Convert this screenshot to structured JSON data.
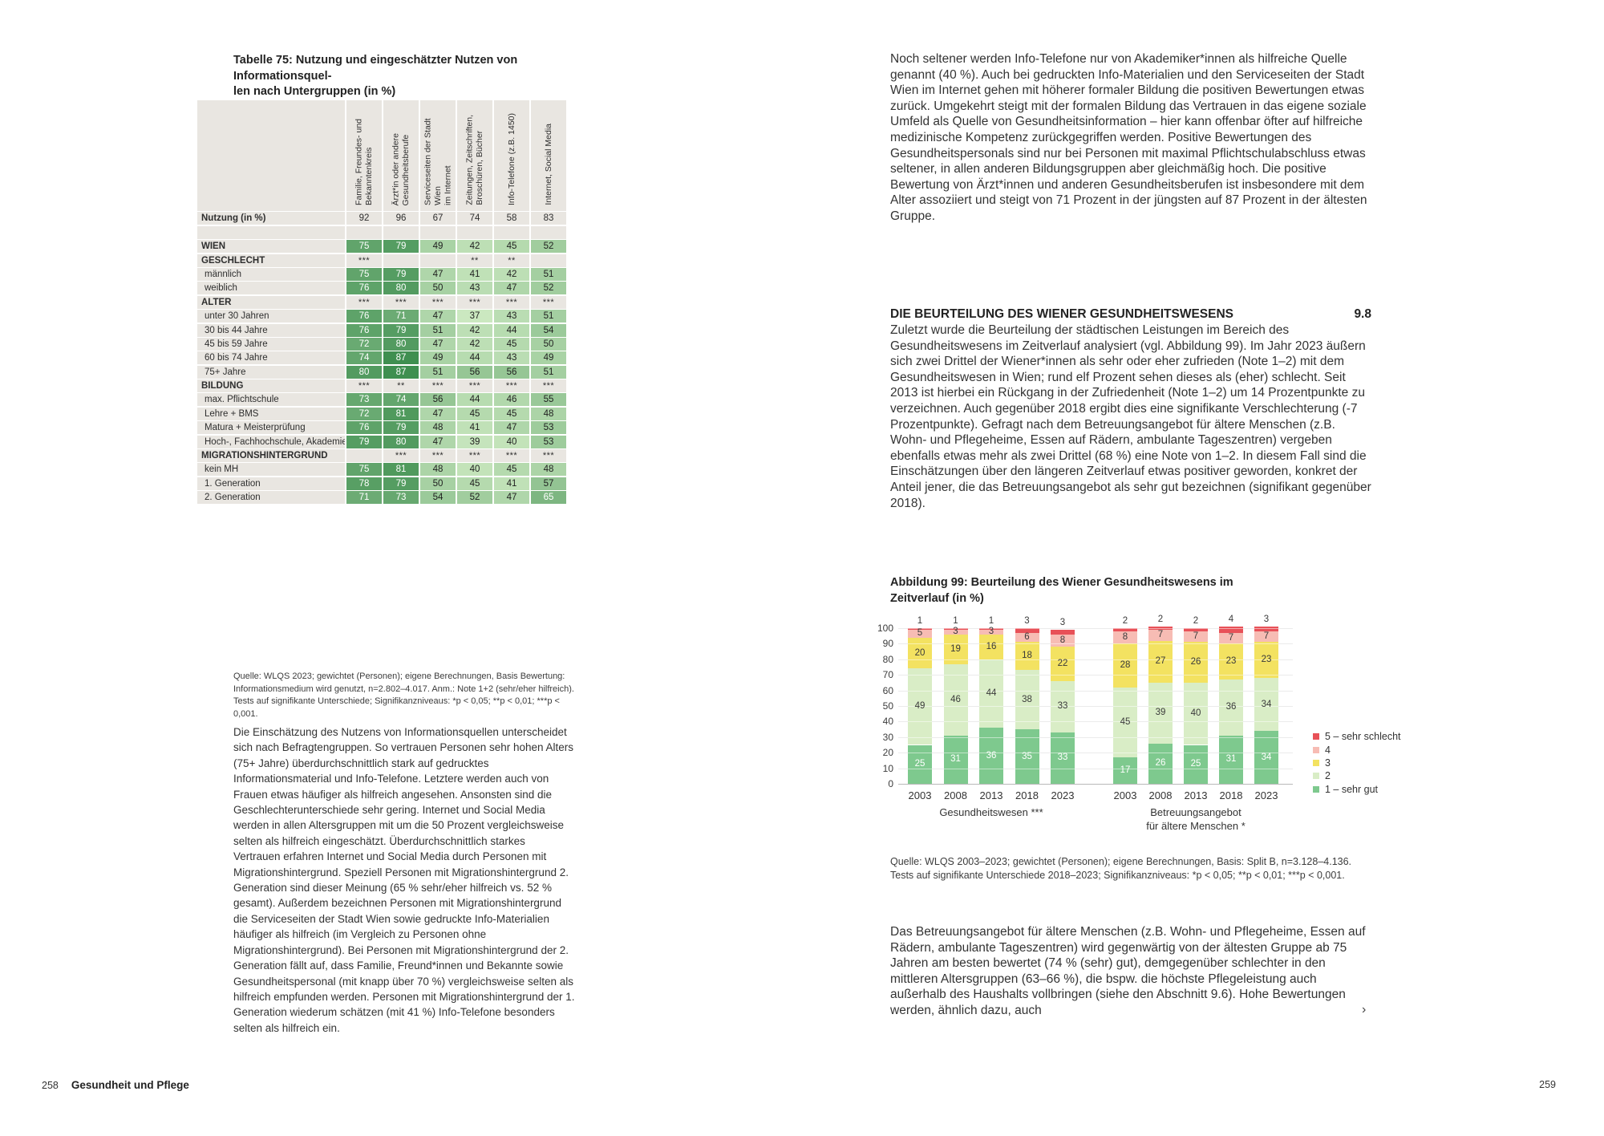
{
  "left_page": {
    "table_title_line1": "Tabelle 75: Nutzung und eingeschätzter Nutzen von Informationsquel-",
    "table_title_line2": "len nach Untergruppen (in %)",
    "table": {
      "header_bg": "#e9e6e1",
      "color_scale": {
        "min_value": 37,
        "max_value": 87,
        "min_color": "#cbe8c0",
        "max_color": "#3f8f50",
        "white_text_threshold": 60
      },
      "columns": [
        "Familie, Freundes- und\nBekanntenkreis",
        "Ärzt*in oder andere\nGesundheitsberufe",
        "Serviceseiten der Stadt Wien\nim Internet",
        "Zeitungen, Zeitschriften,\nBroschüren, Bücher",
        "Info-Telefone (z.B. 1450)",
        "Internet, Social Media"
      ],
      "rows": [
        {
          "label": "Nutzung (in %)",
          "type": "plain",
          "bold": true,
          "values": [
            "92",
            "96",
            "67",
            "74",
            "58",
            "83"
          ]
        },
        {
          "label": "",
          "type": "spacer",
          "values": [
            "",
            "",
            "",
            "",
            "",
            ""
          ]
        },
        {
          "label": "WIEN",
          "type": "data",
          "bold": true,
          "values": [
            75,
            79,
            49,
            42,
            45,
            52
          ]
        },
        {
          "label": "GESCHLECHT",
          "type": "sig",
          "bold": true,
          "values": [
            "***",
            "",
            "",
            "**",
            "**",
            ""
          ]
        },
        {
          "label": "männlich",
          "type": "data",
          "indent": true,
          "values": [
            75,
            79,
            47,
            41,
            42,
            51
          ]
        },
        {
          "label": "weiblich",
          "type": "data",
          "indent": true,
          "values": [
            76,
            80,
            50,
            43,
            47,
            52
          ]
        },
        {
          "label": "ALTER",
          "type": "sig",
          "bold": true,
          "values": [
            "***",
            "***",
            "***",
            "***",
            "***",
            "***"
          ]
        },
        {
          "label": "unter 30 Jahren",
          "type": "data",
          "indent": true,
          "values": [
            76,
            71,
            47,
            37,
            43,
            51
          ]
        },
        {
          "label": "30 bis 44 Jahre",
          "type": "data",
          "indent": true,
          "values": [
            76,
            79,
            51,
            42,
            44,
            54
          ]
        },
        {
          "label": "45 bis 59 Jahre",
          "type": "data",
          "indent": true,
          "values": [
            72,
            80,
            47,
            42,
            45,
            50
          ]
        },
        {
          "label": "60 bis 74 Jahre",
          "type": "data",
          "indent": true,
          "values": [
            74,
            87,
            49,
            44,
            43,
            49
          ]
        },
        {
          "label": "75+ Jahre",
          "type": "data",
          "indent": true,
          "values": [
            80,
            87,
            51,
            56,
            56,
            51
          ]
        },
        {
          "label": "BILDUNG",
          "type": "sig",
          "bold": true,
          "values": [
            "***",
            "**",
            "***",
            "***",
            "***",
            "***"
          ]
        },
        {
          "label": "max. Pflichtschule",
          "type": "data",
          "indent": true,
          "values": [
            73,
            74,
            56,
            44,
            46,
            55
          ]
        },
        {
          "label": "Lehre + BMS",
          "type": "data",
          "indent": true,
          "values": [
            72,
            81,
            47,
            45,
            45,
            48
          ]
        },
        {
          "label": "Matura + Meisterprüfung",
          "type": "data",
          "indent": true,
          "values": [
            76,
            79,
            48,
            41,
            47,
            53
          ]
        },
        {
          "label": "Hoch-, Fachhochschule, Akademie",
          "type": "data",
          "indent": true,
          "values": [
            79,
            80,
            47,
            39,
            40,
            53
          ]
        },
        {
          "label": "MIGRATIONSHINTERGRUND",
          "type": "sig",
          "bold": true,
          "values": [
            "",
            "***",
            "***",
            "***",
            "***",
            "***"
          ]
        },
        {
          "label": "kein MH",
          "type": "data",
          "indent": true,
          "values": [
            75,
            81,
            48,
            40,
            45,
            48
          ]
        },
        {
          "label": "1. Generation",
          "type": "data",
          "indent": true,
          "values": [
            78,
            79,
            50,
            45,
            41,
            57
          ]
        },
        {
          "label": "2. Generation",
          "type": "data",
          "indent": true,
          "values": [
            71,
            73,
            54,
            52,
            47,
            65
          ]
        }
      ]
    },
    "table_note": "Quelle: WLQS 2023; gewichtet (Personen); eigene Berechnungen, Basis Bewertung: Informationsmedium wird genutzt, n=2.802–4.017. Anm.: Note 1+2 (sehr/eher hilfreich). Tests auf signifikante Unterschiede; Signifikanzniveaus: *p < 0,05; **p < 0,01; ***p < 0,001.",
    "body": "Die Einschätzung des Nutzens von Informationsquellen unterscheidet sich nach Befragtengruppen. So vertrauen Personen sehr hohen Alters (75+ Jahre) überdurchschnittlich stark auf gedrucktes Informationsmaterial und Info-Telefone. Letztere werden auch von Frauen etwas häufiger als hilfreich angesehen. Ansonsten sind die Geschlechterunterschiede sehr gering. Internet und Social Media werden in allen Altersgruppen mit um die 50 Prozent vergleichsweise selten als hilfreich eingeschätzt. Überdurchschnittlich starkes Vertrauen erfahren Internet und Social Media durch Personen mit Migrationshintergrund. Speziell Personen mit Migrationshintergrund 2. Generation sind dieser Meinung (65 % sehr/eher hilfreich vs. 52 % gesamt). Außerdem bezeichnen Personen mit Migrationshintergrund die Serviceseiten der Stadt Wien sowie gedruckte Info-Materialien häufiger als hilfreich (im Vergleich zu Personen ohne Migrationshintergrund). Bei Personen mit Migrationshintergrund der 2. Generation fällt auf, dass Familie, Freund*innen und Bekannte sowie Gesundheitspersonal (mit knapp über 70 %) vergleichsweise selten als hilfreich empfunden werden. Personen mit Migrationshintergrund der 1. Generation wiederum schätzen (mit 41 %) Info-Telefone besonders selten als hilfreich ein.",
    "footer_page_number": "258",
    "footer_section": "Gesundheit und Pflege"
  },
  "right_page": {
    "paragraph1": "Noch seltener werden Info-Telefone nur von Akademiker*innen als hilfreiche Quelle genannt (40 %). Auch bei gedruckten Info-Materialien und den Serviceseiten der Stadt Wien im Internet gehen mit höherer formaler Bildung die positiven Bewertungen etwas zurück. Umgekehrt steigt mit der formalen Bildung das Vertrauen in das eigene soziale Umfeld als Quelle von Gesundheitsinformation – hier kann offenbar öfter auf hilfreiche medizinische Kompetenz zurückgegriffen werden. Positive Bewertungen des Gesundheitspersonals sind nur bei Personen mit maximal Pflichtschulabschluss etwas seltener, in allen anderen Bildungsgruppen aber gleichmäßig hoch. Die positive Bewertung von Ärzt*innen und anderen Gesundheitsberufen ist insbesondere mit dem Alter assoziiert und steigt von 71 Prozent in der jüngsten auf 87 Prozent in der ältesten Gruppe.",
    "section_heading": "DIE BEURTEILUNG DES WIENER GESUNDHEITSWESENS",
    "section_number": "9.8",
    "paragraph2": "Zuletzt wurde die Beurteilung der städtischen Leistungen im Bereich des Gesundheitswesens im Zeitverlauf analysiert (vgl. Abbildung 99). Im Jahr 2023 äußern sich zwei Drittel der Wiener*innen als sehr oder eher zufrieden (Note 1–2) mit dem Gesundheitswesen in Wien; rund elf Prozent sehen dieses als (eher) schlecht. Seit 2013 ist hierbei ein Rückgang in der Zufriedenheit (Note 1–2) um 14 Prozentpunkte zu verzeichnen. Auch gegenüber 2018 ergibt dies eine signifikante Verschlechterung (-7 Prozentpunkte). Gefragt nach dem Betreuungsangebot für ältere Menschen (z.B. Wohn- und Pflegeheime, Essen auf Rädern, ambulante Tageszentren) vergeben ebenfalls etwas mehr als zwei Drittel (68 %) eine Note von 1–2. In diesem Fall sind die Einschätzungen über den längeren Zeitverlauf etwas positiver geworden, konkret der Anteil jener, die das Betreuungsangebot als sehr gut bezeichnen (signifikant gegenüber 2018).",
    "figure_title_line1": "Abbildung 99: Beurteilung des Wiener Gesundheitswesens im",
    "figure_title_line2": "Zeitverlauf (in %)",
    "figure_note": "Quelle: WLQS 2003–2023; gewichtet (Personen); eigene Berechnungen, Basis: Split B, n=3.128–4.136. Tests auf signifikante Unterschiede 2018–2023; Signifikanzniveaus: *p < 0,05; **p < 0,01; ***p < 0,001.",
    "paragraph3": "Das Betreuungsangebot für ältere Menschen (z.B. Wohn- und Pflegeheime, Essen auf Rädern, ambulante Tageszentren) wird gegenwärtig von der ältesten Gruppe ab 75 Jahren am besten bewertet (74 % (sehr) gut), demgegenüber schlechter in den mittleren Altersgruppen (63–66 %), die bspw. die höchste Pflegeleistung auch außerhalb des Haushalts vollbringen (siehe den Abschnitt 9.6). Hohe Bewertungen werden, ähnlich dazu, auch",
    "continuation_mark": "›",
    "footer_page_number": "259"
  },
  "chart_data": {
    "type": "bar",
    "stacked": true,
    "title": "Abbildung 99: Beurteilung des Wiener Gesundheitswesens im Zeitverlauf (in %)",
    "ylim": [
      0,
      100
    ],
    "ytick_step": 10,
    "grid": true,
    "legend_position": "right",
    "series_bottom_to_top": [
      "1 – sehr gut",
      "2",
      "3",
      "4",
      "5 – sehr schlecht"
    ],
    "colors_bottom_to_top": [
      "#7ec98e",
      "#d9edc6",
      "#f3e261",
      "#f7bcb4",
      "#e85158"
    ],
    "legend_top_to_bottom": [
      {
        "label": "5 – sehr schlecht",
        "color": "#e85158"
      },
      {
        "label": "4",
        "color": "#f7bcb4"
      },
      {
        "label": "3",
        "color": "#f3e261"
      },
      {
        "label": "2",
        "color": "#d9edc6"
      },
      {
        "label": "1 – sehr gut",
        "color": "#7ec98e"
      }
    ],
    "groups": [
      {
        "label_line1": "Gesundheitswesen ***",
        "label_line2": "",
        "categories": [
          "2003",
          "2008",
          "2013",
          "2018",
          "2023"
        ],
        "series": [
          {
            "name": "1 – sehr gut",
            "values": [
              25,
              31,
              36,
              35,
              33
            ]
          },
          {
            "name": "2",
            "values": [
              49,
              46,
              44,
              38,
              33
            ]
          },
          {
            "name": "3",
            "values": [
              20,
              19,
              16,
              18,
              22
            ]
          },
          {
            "name": "4",
            "values": [
              5,
              3,
              3,
              6,
              8
            ]
          },
          {
            "name": "5 – sehr schlecht",
            "values": [
              1,
              1,
              1,
              3,
              3
            ]
          }
        ]
      },
      {
        "label_line1": "Betreuungsangebot",
        "label_line2": "für ältere Menschen *",
        "categories": [
          "2003",
          "2008",
          "2013",
          "2018",
          "2023"
        ],
        "series": [
          {
            "name": "1 – sehr gut",
            "values": [
              17,
              26,
              25,
              31,
              34
            ]
          },
          {
            "name": "2",
            "values": [
              45,
              39,
              40,
              36,
              34
            ]
          },
          {
            "name": "3",
            "values": [
              28,
              27,
              26,
              23,
              23
            ]
          },
          {
            "name": "4",
            "values": [
              8,
              7,
              7,
              7,
              7
            ]
          },
          {
            "name": "5 – sehr schlecht",
            "values": [
              2,
              2,
              2,
              4,
              3
            ]
          }
        ]
      }
    ]
  }
}
